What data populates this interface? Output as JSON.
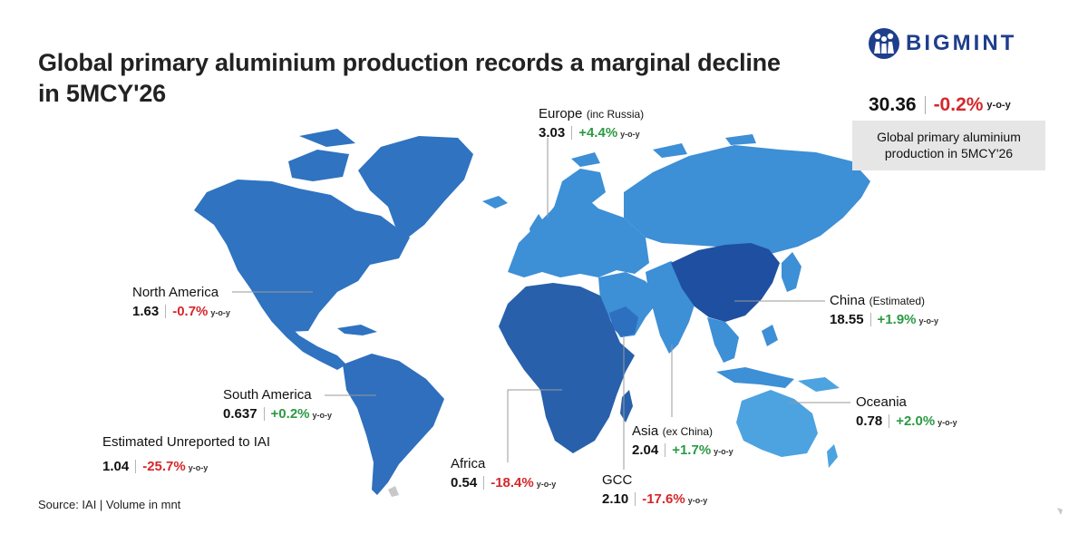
{
  "title": "Global primary aluminium production records a marginal decline in 5MCY'26",
  "brand": {
    "name": "BIGMINT",
    "color": "#1f3e8c",
    "icon": "people-circle-logo"
  },
  "summary": {
    "value": "30.36",
    "change": "-0.2%",
    "yoy": "y-o-y",
    "label_line1": "Global primary aluminium",
    "label_line2": "production in 5MCY'26"
  },
  "source": "Source: IAI | Volume in mnt",
  "colors": {
    "up": "#2b9a44",
    "down": "#d6272b",
    "china": "#1f4fa0",
    "africa": "#2860ab",
    "americas": "#2f73c1",
    "europe_asia": "#3d8fd6",
    "oceania": "#4da3e0"
  },
  "regions": {
    "europe": {
      "name": "Europe",
      "note": "(inc Russia)",
      "value": "3.03",
      "change": "+4.4%",
      "yoy": "y-o-y"
    },
    "north_america": {
      "name": "North America",
      "value": "1.63",
      "change": "-0.7%",
      "yoy": "y-o-y"
    },
    "south_america": {
      "name": "South America",
      "value": "0.637",
      "change": "+0.2%",
      "yoy": "y-o-y"
    },
    "unreported": {
      "name": "Estimated Unreported to IAI",
      "value": "1.04",
      "change": "-25.7%",
      "yoy": "y-o-y"
    },
    "africa": {
      "name": "Africa",
      "value": "0.54",
      "change": "-18.4%",
      "yoy": "y-o-y"
    },
    "gcc": {
      "name": "GCC",
      "value": "2.10",
      "change": "-17.6%",
      "yoy": "y-o-y"
    },
    "asia": {
      "name": "Asia",
      "note": "(ex China)",
      "value": "2.04",
      "change": "+1.7%",
      "yoy": "y-o-y"
    },
    "china": {
      "name": "China",
      "note": "(Estimated)",
      "value": "18.55",
      "change": "+1.9%",
      "yoy": "y-o-y"
    },
    "oceania": {
      "name": "Oceania",
      "value": "0.78",
      "change": "+2.0%",
      "yoy": "y-o-y"
    }
  }
}
